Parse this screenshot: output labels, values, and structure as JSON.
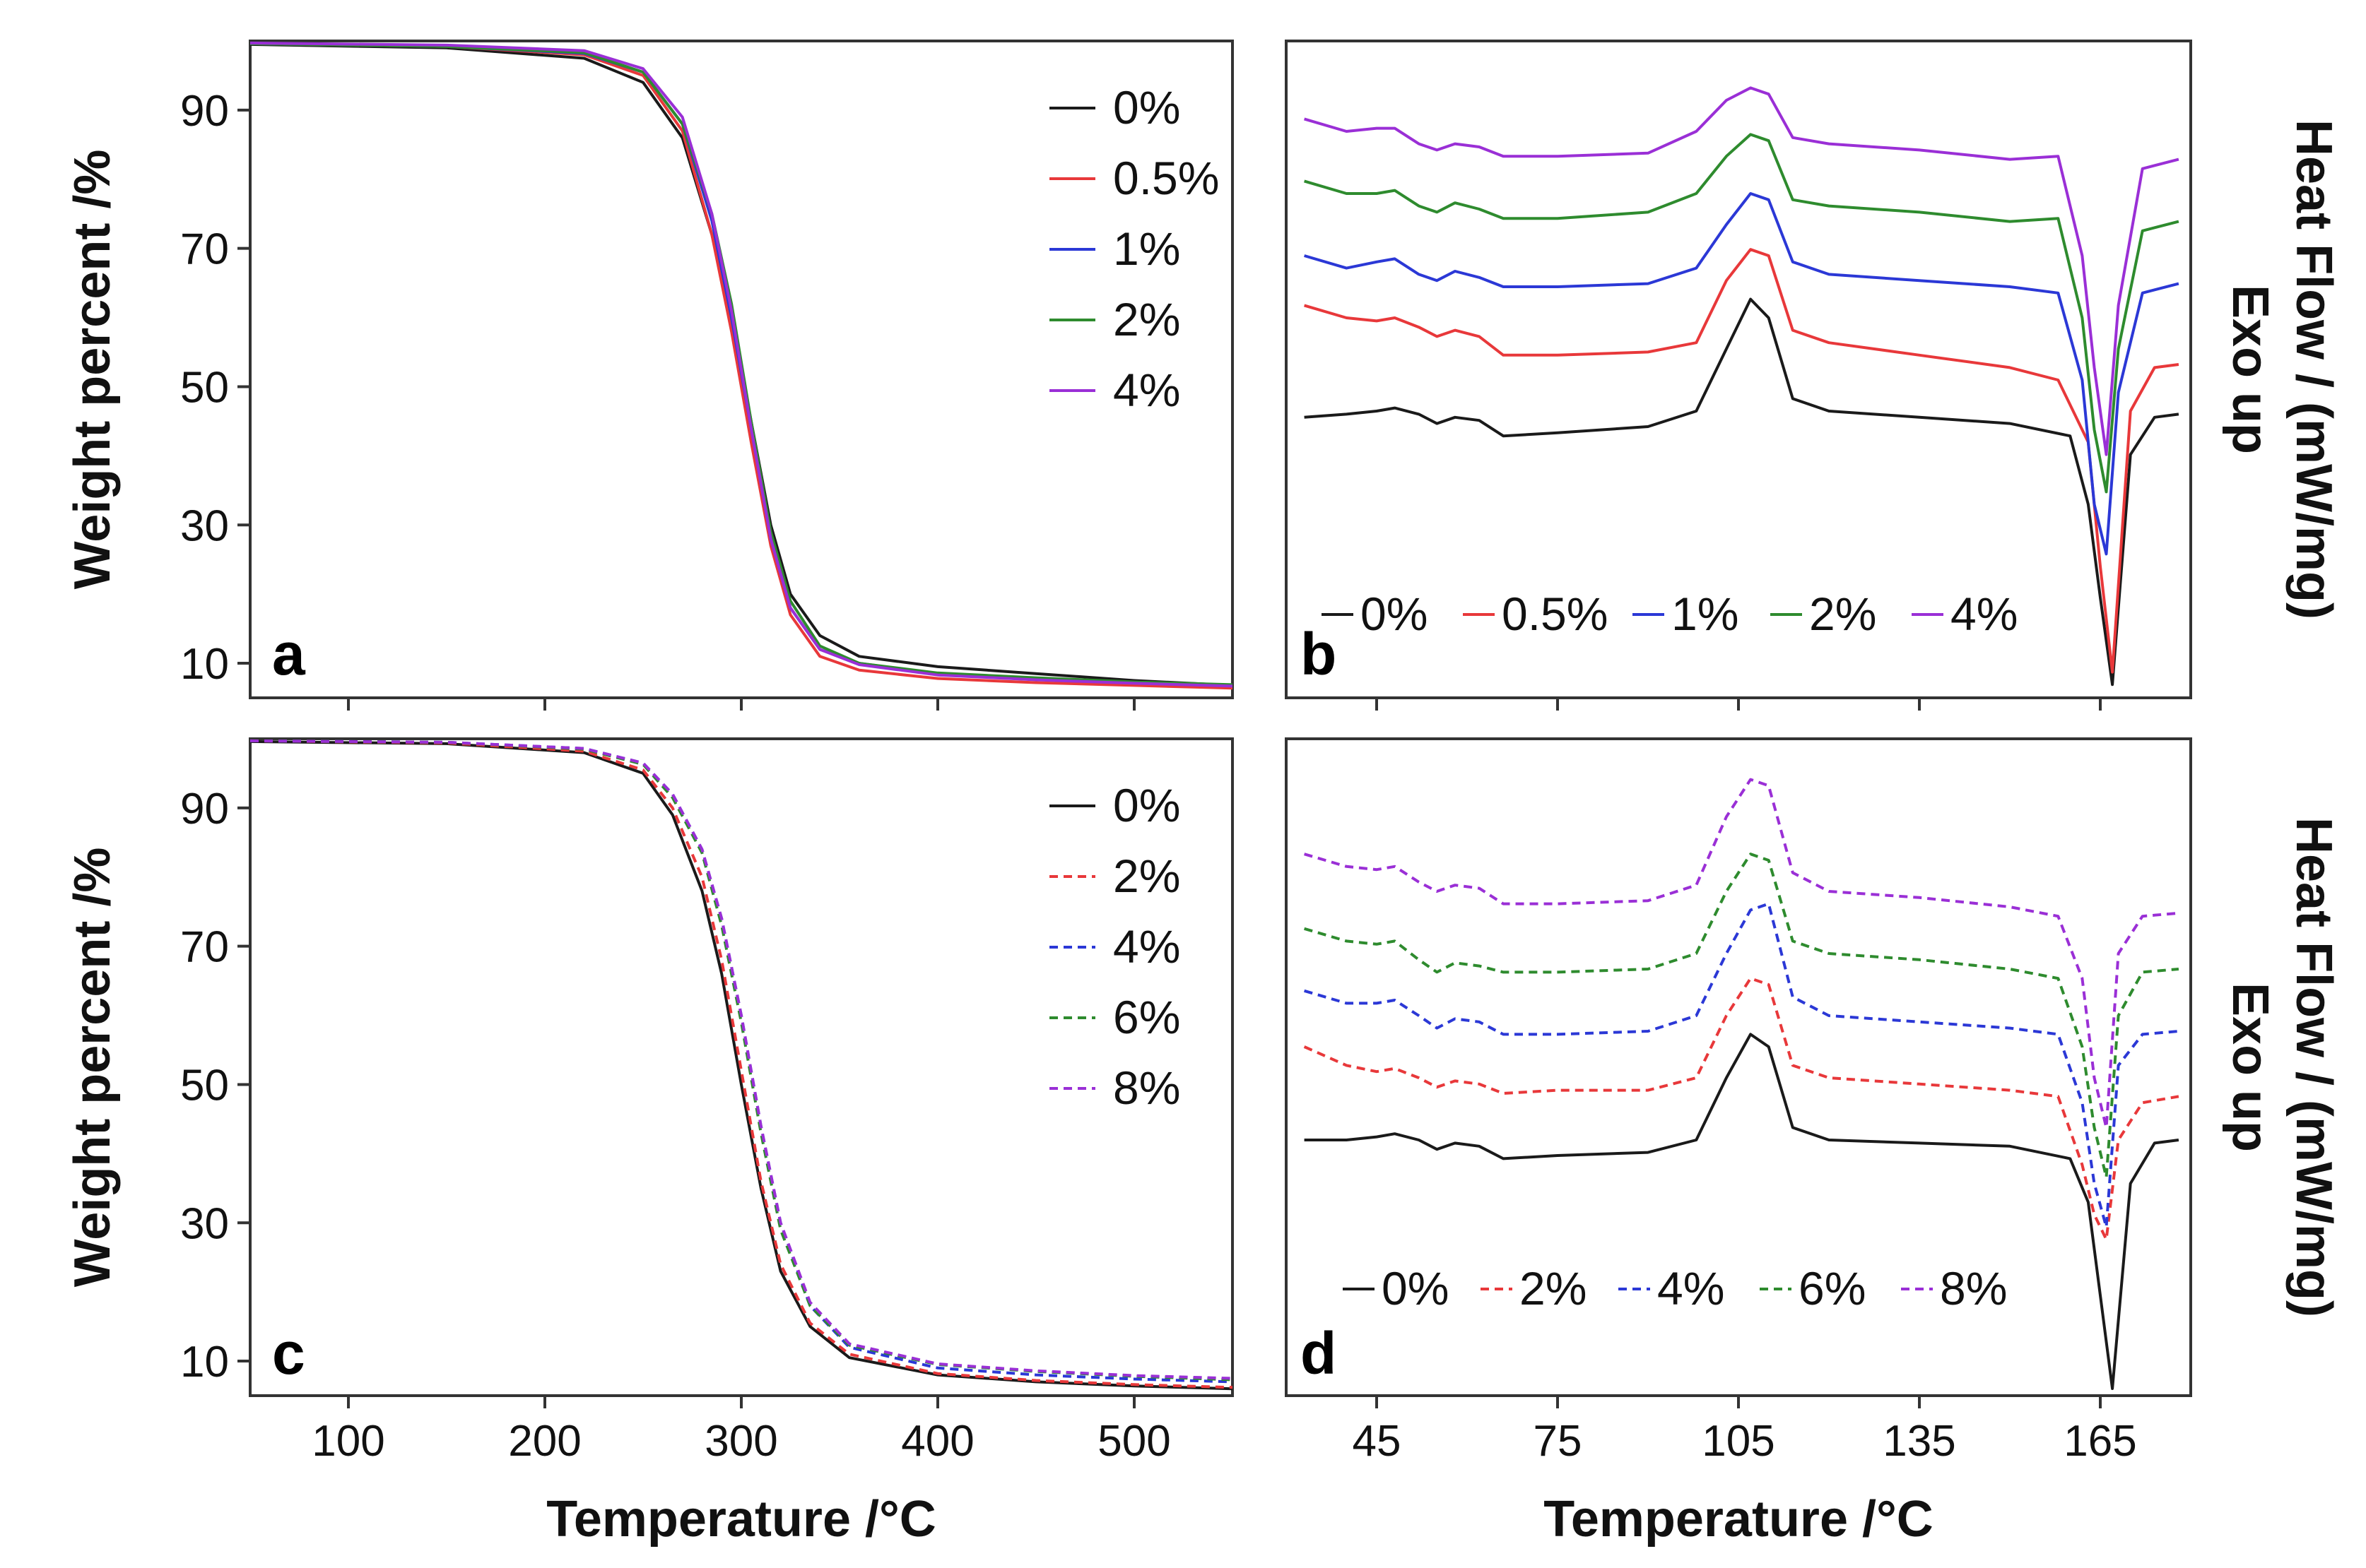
{
  "figure": {
    "shared_xlabel_tga": "Temperature /°C",
    "shared_xlabel_dsc": "Temperature /°C",
    "colors": {
      "0%": "#1a1a1a",
      "0.5%": "#e8383a",
      "1%": "#2b38d6",
      "2%": "#2e8b2e",
      "4%": "#9a2fd6",
      "6%": "#2e8b2e",
      "8%": "#9a2fd6",
      "red": "#e8383a",
      "blue": "#2b38d6",
      "green": "#2e8b2e",
      "purple": "#9a2fd6"
    }
  },
  "chart_data": [
    {
      "panel": "a",
      "type": "line",
      "title": "",
      "xlabel": "",
      "ylabel": "Weight percent /%",
      "xlim": [
        50,
        550
      ],
      "ylim": [
        5,
        100
      ],
      "yticks": [
        "10",
        "30",
        "50",
        "70",
        "90"
      ],
      "line_style": "solid",
      "legend": [
        "0%",
        "0.5%",
        "1%",
        "2%",
        "4%"
      ],
      "series": [
        {
          "name": "0%",
          "color": "#1a1a1a",
          "x": [
            50,
            150,
            220,
            250,
            270,
            285,
            295,
            305,
            315,
            325,
            340,
            360,
            400,
            450,
            500,
            550
          ],
          "y": [
            99.5,
            99.0,
            97.5,
            94,
            86,
            72,
            60,
            45,
            30,
            20,
            14,
            11,
            9.5,
            8.5,
            7.5,
            6.8
          ]
        },
        {
          "name": "0.5%",
          "color": "#e8383a",
          "x": [
            50,
            150,
            220,
            250,
            270,
            285,
            295,
            305,
            315,
            325,
            340,
            360,
            400,
            450,
            500,
            550
          ],
          "y": [
            99.6,
            99.2,
            98,
            95,
            87,
            72,
            58,
            42,
            27,
            17,
            11,
            9,
            7.8,
            7.2,
            6.8,
            6.4
          ]
        },
        {
          "name": "1%",
          "color": "#2b38d6",
          "x": [
            50,
            150,
            220,
            250,
            270,
            285,
            295,
            305,
            315,
            325,
            340,
            360,
            400,
            450,
            500,
            550
          ],
          "y": [
            99.6,
            99.2,
            98.2,
            95.5,
            88,
            74,
            60,
            44,
            28,
            18,
            12,
            10,
            8.5,
            7.8,
            7.2,
            6.8
          ]
        },
        {
          "name": "2%",
          "color": "#2e8b2e",
          "x": [
            50,
            150,
            220,
            250,
            270,
            285,
            295,
            305,
            315,
            325,
            340,
            360,
            400,
            450,
            500,
            550
          ],
          "y": [
            99.6,
            99.2,
            98.3,
            95.5,
            88,
            75,
            62,
            45,
            29,
            19,
            12.5,
            10,
            8.6,
            7.9,
            7.3,
            6.9
          ]
        },
        {
          "name": "4%",
          "color": "#9a2fd6",
          "x": [
            50,
            150,
            220,
            250,
            270,
            285,
            295,
            305,
            315,
            325,
            340,
            360,
            400,
            450,
            500,
            550
          ],
          "y": [
            99.7,
            99.4,
            98.6,
            96,
            89,
            75,
            61,
            44,
            28,
            18,
            12,
            9.8,
            8.3,
            7.6,
            7.1,
            6.7
          ]
        }
      ]
    },
    {
      "panel": "b",
      "type": "line",
      "title": "",
      "xlabel": "",
      "ylabel": "Heat Flow / (mW/mg)",
      "ylabel2": "Exo up",
      "xlim": [
        30,
        180
      ],
      "ylim": [
        0,
        100
      ],
      "yticks": [],
      "line_style": "solid",
      "legend": [
        "0%",
        "0.5%",
        "1%",
        "2%",
        "4%"
      ],
      "series": [
        {
          "name": "0%",
          "color": "#1a1a1a",
          "x": [
            33,
            40,
            45,
            48,
            52,
            55,
            58,
            62,
            66,
            75,
            90,
            98,
            103,
            107,
            110,
            114,
            120,
            135,
            150,
            160,
            163,
            165,
            167,
            170,
            174,
            178
          ],
          "y": [
            44,
            44.5,
            45,
            45.5,
            44.5,
            43,
            44,
            43.5,
            41,
            41.5,
            42.5,
            45,
            55,
            63,
            60,
            47,
            45,
            44,
            43,
            41,
            30,
            15,
            1,
            38,
            44,
            44.5
          ]
        },
        {
          "name": "0.5%",
          "color": "#e8383a",
          "x": [
            33,
            40,
            45,
            48,
            52,
            55,
            58,
            62,
            66,
            75,
            90,
            98,
            103,
            107,
            110,
            114,
            120,
            135,
            150,
            158,
            163,
            165,
            167,
            170,
            174,
            178
          ],
          "y": [
            62,
            60,
            59.5,
            60,
            58.5,
            57,
            58,
            57,
            54,
            54,
            54.5,
            56,
            66,
            71,
            70,
            58,
            56,
            54,
            52,
            50,
            40,
            20,
            3,
            45,
            52,
            52.5
          ]
        },
        {
          "name": "1%",
          "color": "#2b38d6",
          "x": [
            33,
            40,
            45,
            48,
            52,
            55,
            58,
            62,
            66,
            75,
            90,
            98,
            103,
            107,
            110,
            114,
            120,
            135,
            150,
            158,
            162,
            164,
            166,
            168,
            172,
            178
          ],
          "y": [
            70,
            68,
            69,
            69.5,
            67,
            66,
            67.5,
            66.5,
            65,
            65,
            65.5,
            68,
            75,
            80,
            79,
            69,
            67,
            66,
            65,
            64,
            50,
            30,
            22,
            48,
            64,
            65.5
          ]
        },
        {
          "name": "2%",
          "color": "#2e8b2e",
          "x": [
            33,
            40,
            45,
            48,
            52,
            55,
            58,
            62,
            66,
            75,
            90,
            98,
            103,
            107,
            110,
            114,
            120,
            135,
            150,
            158,
            162,
            164,
            166,
            168,
            172,
            178
          ],
          "y": [
            82,
            80,
            80,
            80.5,
            78,
            77,
            78.5,
            77.5,
            76,
            76,
            77,
            80,
            86,
            89.5,
            88.5,
            79,
            78,
            77,
            75.5,
            76,
            60,
            42,
            32,
            55,
            74,
            75.5
          ]
        },
        {
          "name": "4%",
          "color": "#9a2fd6",
          "x": [
            33,
            40,
            45,
            48,
            52,
            55,
            58,
            62,
            66,
            75,
            90,
            98,
            103,
            107,
            110,
            114,
            120,
            135,
            150,
            158,
            162,
            164,
            166,
            168,
            172,
            178
          ],
          "y": [
            92,
            90,
            90.5,
            90.5,
            88,
            87,
            88,
            87.5,
            86,
            86,
            86.5,
            90,
            95,
            97,
            96,
            89,
            88,
            87,
            85.5,
            86,
            70,
            52,
            38,
            62,
            84,
            85.5
          ]
        }
      ]
    },
    {
      "panel": "c",
      "type": "line",
      "title": "",
      "xlabel": "Temperature /°C",
      "ylabel": "Weight percent /%",
      "xlim": [
        50,
        550
      ],
      "ylim": [
        5,
        100
      ],
      "xticks": [
        "100",
        "200",
        "300",
        "400",
        "500"
      ],
      "yticks": [
        "10",
        "30",
        "50",
        "70",
        "90"
      ],
      "line_style": "dashed",
      "legend": [
        "0%",
        "2%",
        "4%",
        "6%",
        "8%"
      ],
      "series": [
        {
          "name": "0%",
          "color": "#1a1a1a",
          "dash": "solid",
          "x": [
            50,
            150,
            220,
            250,
            265,
            280,
            290,
            300,
            310,
            320,
            335,
            355,
            400,
            450,
            500,
            550
          ],
          "y": [
            99.6,
            99.3,
            98,
            95,
            89,
            78,
            66,
            50,
            35,
            23,
            15,
            10.5,
            8,
            7,
            6.4,
            6
          ]
        },
        {
          "name": "2%",
          "color": "#e8383a",
          "dash": "dashed",
          "x": [
            50,
            150,
            220,
            250,
            265,
            280,
            290,
            300,
            310,
            320,
            335,
            355,
            400,
            450,
            500,
            550
          ],
          "y": [
            99.7,
            99.4,
            98.2,
            95.5,
            90,
            80,
            68,
            52,
            36,
            24,
            15.5,
            11,
            8.2,
            7.2,
            6.6,
            6.2
          ]
        },
        {
          "name": "4%",
          "color": "#2b38d6",
          "dash": "dashed",
          "x": [
            50,
            150,
            220,
            250,
            265,
            280,
            290,
            300,
            310,
            320,
            335,
            355,
            400,
            450,
            500,
            550
          ],
          "y": [
            99.7,
            99.5,
            98.6,
            96.5,
            92,
            84,
            74,
            60,
            44,
            30,
            18,
            12,
            9,
            8,
            7.4,
            7
          ]
        },
        {
          "name": "6%",
          "color": "#2e8b2e",
          "dash": "dashed",
          "x": [
            50,
            150,
            220,
            250,
            265,
            280,
            290,
            300,
            310,
            320,
            335,
            355,
            400,
            450,
            500,
            550
          ],
          "y": [
            99.7,
            99.5,
            98.5,
            96.3,
            91.5,
            83.5,
            73,
            59,
            43,
            29,
            18,
            12.3,
            9.5,
            8.5,
            7.8,
            7.3
          ]
        },
        {
          "name": "8%",
          "color": "#9a2fd6",
          "dash": "dashed",
          "x": [
            50,
            150,
            220,
            250,
            265,
            280,
            290,
            300,
            310,
            320,
            335,
            355,
            400,
            450,
            500,
            550
          ],
          "y": [
            99.7,
            99.5,
            98.6,
            96.5,
            92,
            84,
            74,
            60,
            44,
            30,
            18.5,
            12.5,
            9.6,
            8.6,
            7.9,
            7.5
          ]
        }
      ]
    },
    {
      "panel": "d",
      "type": "line",
      "title": "",
      "xlabel": "Temperature /°C",
      "ylabel": "Heat Flow / (mW/mg)",
      "ylabel2": "Exo up",
      "xlim": [
        30,
        180
      ],
      "ylim": [
        0,
        100
      ],
      "xticks": [
        "45",
        "75",
        "105",
        "135",
        "165"
      ],
      "yticks": [],
      "line_style": "dashed",
      "legend": [
        "0%",
        "2%",
        "4%",
        "6%",
        "8%"
      ],
      "series": [
        {
          "name": "0%",
          "color": "#1a1a1a",
          "dash": "solid",
          "x": [
            33,
            40,
            45,
            48,
            52,
            55,
            58,
            62,
            66,
            75,
            90,
            98,
            103,
            107,
            110,
            114,
            120,
            135,
            150,
            160,
            163,
            165,
            167,
            170,
            174,
            178
          ],
          "y": [
            40,
            40,
            40.5,
            41,
            40,
            38.5,
            39.5,
            39,
            37,
            37.5,
            38,
            40,
            50,
            57,
            55,
            42,
            40,
            39.5,
            39,
            37,
            30,
            15,
            0,
            33,
            39.5,
            40
          ]
        },
        {
          "name": "2%",
          "color": "#e8383a",
          "dash": "dashed",
          "x": [
            33,
            40,
            45,
            48,
            52,
            55,
            58,
            62,
            66,
            75,
            90,
            98,
            103,
            107,
            110,
            114,
            120,
            135,
            150,
            158,
            162,
            164,
            166,
            168,
            172,
            178
          ],
          "y": [
            55,
            52,
            51,
            51.5,
            50,
            48.5,
            49.5,
            49,
            47.5,
            48,
            48,
            50,
            60,
            66,
            65,
            52,
            50,
            49,
            48,
            47,
            36,
            28,
            24,
            40,
            46,
            47
          ]
        },
        {
          "name": "4%",
          "color": "#2b38d6",
          "dash": "dashed",
          "x": [
            33,
            40,
            45,
            48,
            52,
            55,
            58,
            62,
            66,
            75,
            90,
            98,
            103,
            107,
            110,
            114,
            120,
            135,
            150,
            158,
            162,
            164,
            166,
            168,
            172,
            178
          ],
          "y": [
            64,
            62,
            62,
            62.5,
            60,
            58,
            59.5,
            59,
            57,
            57,
            57.5,
            60,
            70,
            77,
            78,
            63,
            60,
            59,
            58,
            57,
            46,
            33,
            26,
            52,
            57,
            57.5
          ]
        },
        {
          "name": "6%",
          "color": "#2e8b2e",
          "dash": "dashed",
          "x": [
            33,
            40,
            45,
            48,
            52,
            55,
            58,
            62,
            66,
            75,
            90,
            98,
            103,
            107,
            110,
            114,
            120,
            135,
            150,
            158,
            162,
            164,
            166,
            168,
            172,
            178
          ],
          "y": [
            74,
            72,
            71.5,
            72,
            69,
            67,
            68.5,
            68,
            67,
            67,
            67.5,
            70,
            80,
            86,
            85,
            72,
            70,
            69,
            67.5,
            66,
            55,
            42,
            34,
            60,
            67,
            67.5
          ]
        },
        {
          "name": "8%",
          "color": "#9a2fd6",
          "dash": "dashed",
          "x": [
            33,
            40,
            45,
            48,
            52,
            55,
            58,
            62,
            66,
            75,
            90,
            98,
            103,
            107,
            110,
            114,
            120,
            135,
            150,
            158,
            162,
            164,
            166,
            168,
            172,
            178
          ],
          "y": [
            86,
            84,
            83.5,
            84,
            81.5,
            80,
            81,
            80.5,
            78,
            78,
            78.5,
            81,
            92,
            98,
            97,
            83,
            80,
            79,
            77.5,
            76,
            66,
            50,
            42,
            70,
            76,
            76.5
          ]
        }
      ]
    }
  ],
  "panel_letters": {
    "a": "a",
    "b": "b",
    "c": "c",
    "d": "d"
  },
  "left_ylabel_top": "Weight percent /%",
  "left_ylabel_bottom": "Weight percent /%",
  "right_ylabel_top_line1": "Heat Flow / (mW/mg)",
  "right_ylabel_top_line2": "Exo up",
  "right_ylabel_bottom_line1": "Heat Flow / (mW/mg)",
  "right_ylabel_bottom_line2": "Exo up"
}
